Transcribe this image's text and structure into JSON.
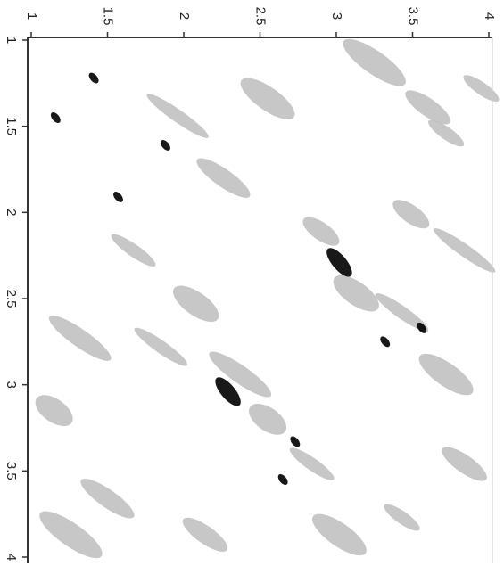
{
  "chart_data": {
    "type": "scatter",
    "xlim": [
      1,
      4
    ],
    "xticks": [
      1,
      1.5,
      2,
      2.5,
      3,
      3.5,
      4
    ],
    "ylim": [
      1,
      4
    ],
    "yticks": [
      1,
      1.5,
      2,
      2.5,
      3,
      3.5,
      4
    ],
    "series": [
      {
        "color": "#bdbdbd",
        "x": [
          3.72,
          3.6,
          2.55,
          1.96,
          2.9,
          3.13,
          3.43,
          2.37,
          2.55,
          2.84,
          1.5,
          1.26,
          3.43,
          3.84,
          3.72,
          3.84,
          3.49,
          2.08,
          1.85,
          1.32,
          1.15,
          1.67,
          2.26,
          3.25,
          3.95,
          2.14,
          3.02
        ],
        "values": [
          1.54,
          1.39,
          1.34,
          1.44,
          2.11,
          2.47,
          2.58,
          2.94,
          3.2,
          3.46,
          3.66,
          3.87,
          3.77,
          3.46,
          2.94,
          2.22,
          2.01,
          2.53,
          2.78,
          2.73,
          3.15,
          2.22,
          1.8,
          1.13,
          1.28,
          3.87,
          3.87
        ]
      },
      {
        "color": "#000000",
        "x": [
          1.41,
          1.16,
          1.88,
          1.57,
          3.02,
          3.32,
          2.29,
          2.73,
          2.65,
          3.56
        ],
        "values": [
          1.22,
          1.45,
          1.61,
          1.91,
          2.29,
          2.75,
          3.04,
          3.33,
          3.55,
          2.67
        ]
      }
    ]
  }
}
